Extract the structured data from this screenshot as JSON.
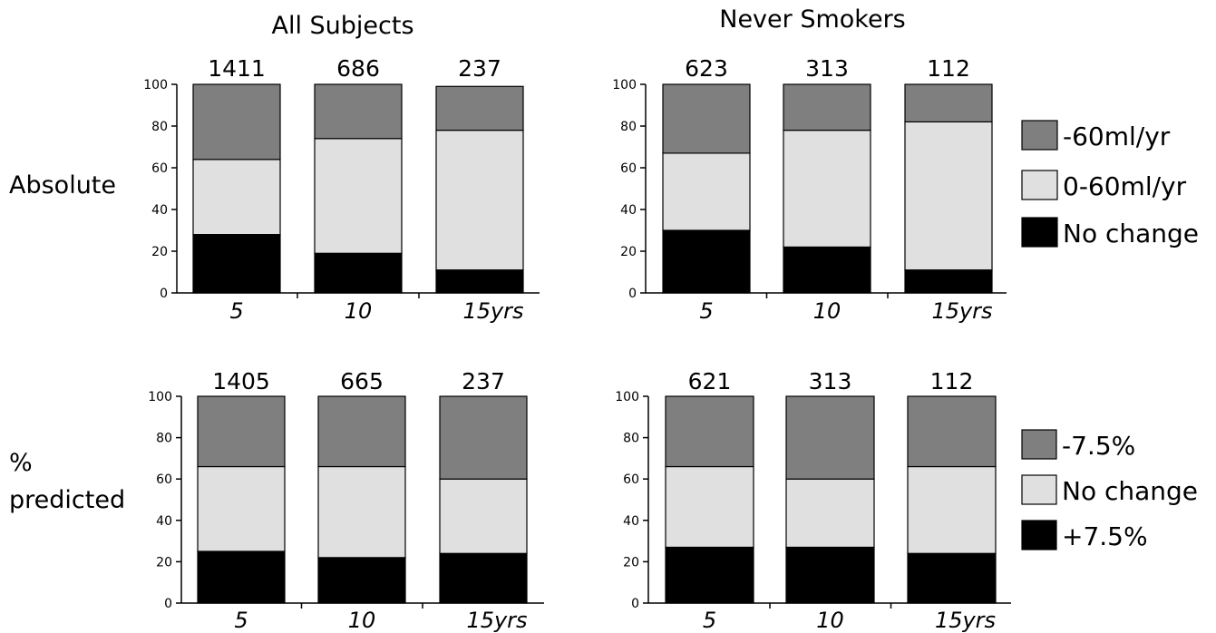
{
  "figure": {
    "column_titles": [
      "All Subjects",
      "Never Smokers"
    ],
    "row_labels": [
      [
        "Absolute"
      ],
      [
        "%",
        "predicted"
      ]
    ]
  },
  "legends": [
    {
      "items": [
        {
          "label": "-60ml/yr",
          "color": "#7f7f7f"
        },
        {
          "label": "0-60ml/yr",
          "color": "#e0e0e0"
        },
        {
          "label": "No change",
          "color": "#000000"
        }
      ]
    },
    {
      "items": [
        {
          "label": "-7.5%",
          "color": "#7f7f7f"
        },
        {
          "label": "No change",
          "color": "#e0e0e0"
        },
        {
          "label": "+7.5%",
          "color": "#000000"
        }
      ]
    }
  ],
  "chart_data": [
    {
      "type": "bar",
      "stacked": true,
      "title": "",
      "categories": [
        "5",
        "10",
        "15yrs"
      ],
      "counts": [
        "1411",
        "686",
        "237"
      ],
      "ylim": [
        0,
        100
      ],
      "yticks": [
        0,
        20,
        40,
        60,
        80,
        100
      ],
      "series": [
        {
          "name": "No change",
          "values": [
            28,
            19,
            11
          ],
          "color": "#000000"
        },
        {
          "name": "0-60ml/yr",
          "values": [
            36,
            55,
            67
          ],
          "color": "#e0e0e0"
        },
        {
          "name": "-60ml/yr",
          "values": [
            36,
            26,
            21
          ],
          "color": "#7f7f7f"
        }
      ]
    },
    {
      "type": "bar",
      "stacked": true,
      "title": "",
      "categories": [
        "5",
        "10",
        "15yrs"
      ],
      "counts": [
        "623",
        "313",
        "112"
      ],
      "ylim": [
        0,
        100
      ],
      "yticks": [
        0,
        20,
        40,
        60,
        80,
        100
      ],
      "series": [
        {
          "name": "No change",
          "values": [
            30,
            22,
            11
          ],
          "color": "#000000"
        },
        {
          "name": "0-60ml/yr",
          "values": [
            37,
            56,
            71
          ],
          "color": "#e0e0e0"
        },
        {
          "name": "-60ml/yr",
          "values": [
            33,
            22,
            18
          ],
          "color": "#7f7f7f"
        }
      ]
    },
    {
      "type": "bar",
      "stacked": true,
      "title": "",
      "categories": [
        "5",
        "10",
        "15yrs"
      ],
      "counts": [
        "1405",
        "665",
        "237"
      ],
      "ylim": [
        0,
        100
      ],
      "yticks": [
        0,
        20,
        40,
        60,
        80,
        100
      ],
      "series": [
        {
          "name": "+7.5%",
          "values": [
            25,
            22,
            24
          ],
          "color": "#000000"
        },
        {
          "name": "No change",
          "values": [
            41,
            44,
            36
          ],
          "color": "#e0e0e0"
        },
        {
          "name": "-7.5%",
          "values": [
            34,
            34,
            40
          ],
          "color": "#7f7f7f"
        }
      ]
    },
    {
      "type": "bar",
      "stacked": true,
      "title": "",
      "categories": [
        "5",
        "10",
        "15yrs"
      ],
      "counts": [
        "621",
        "313",
        "112"
      ],
      "ylim": [
        0,
        100
      ],
      "yticks": [
        0,
        20,
        40,
        60,
        80,
        100
      ],
      "series": [
        {
          "name": "+7.5%",
          "values": [
            27,
            27,
            24
          ],
          "color": "#000000"
        },
        {
          "name": "No change",
          "values": [
            39,
            33,
            42
          ],
          "color": "#e0e0e0"
        },
        {
          "name": "-7.5%",
          "values": [
            34,
            40,
            34
          ],
          "color": "#7f7f7f"
        }
      ]
    }
  ]
}
